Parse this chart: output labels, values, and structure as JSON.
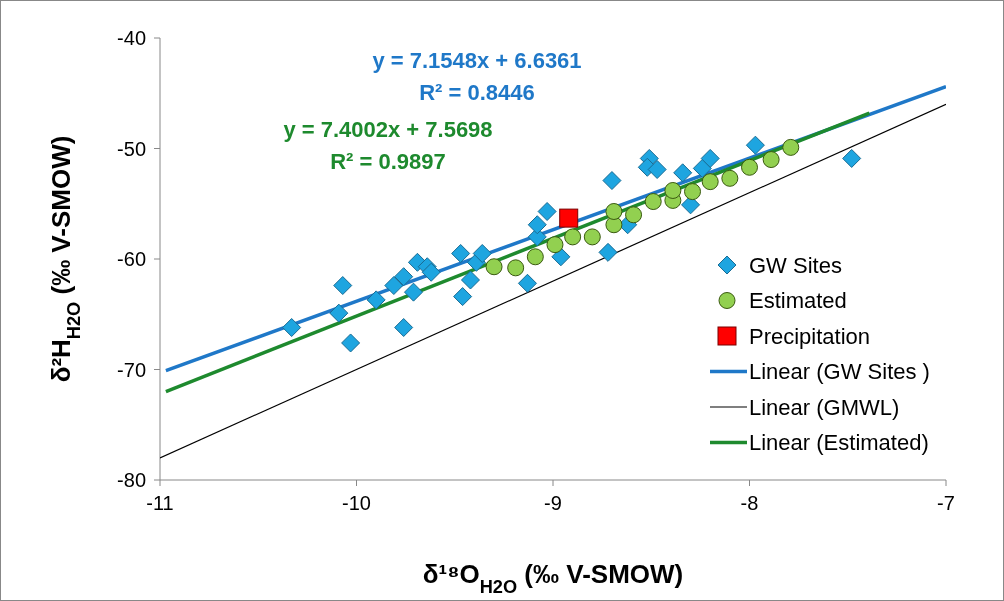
{
  "chart_data": {
    "type": "scatter",
    "xlabel": "δ¹⁸O$_{H2O}$ (‰ V-SMOW)",
    "ylabel": "δ²H$_{H2O}$ (‰ V-SMOW)",
    "xlim": [
      -11,
      -7
    ],
    "xticks": [
      -11,
      -10,
      -9,
      -8,
      -7
    ],
    "ylim": [
      -80,
      -40
    ],
    "yticks": [
      -80,
      -70,
      -60,
      -50,
      -40
    ],
    "grid": false,
    "legend": "right",
    "annotations": [
      "y = 7.1548x + 6.6361",
      "R² = 0.8446",
      "y = 7.4002x + 7.5698",
      "R² = 0.9897"
    ],
    "series": [
      {
        "name": "GW Sites",
        "marker": "diamond",
        "color": "#1ea5e0",
        "x": [
          -10.33,
          -10.07,
          -10.09,
          -10.03,
          -9.9,
          -9.81,
          -9.76,
          -9.76,
          -9.71,
          -9.69,
          -9.64,
          -9.62,
          -9.47,
          -9.46,
          -9.42,
          -9.39,
          -9.36,
          -9.13,
          -9.08,
          -9.08,
          -9.03,
          -8.96,
          -8.72,
          -8.7,
          -8.62,
          -8.51,
          -8.52,
          -8.47,
          -8.34,
          -8.24,
          -8.2,
          -8.3,
          -7.97,
          -7.48
        ],
        "values": [
          -66.2,
          -62.4,
          -64.9,
          -67.6,
          -63.7,
          -62.4,
          -61.6,
          -66.2,
          -63,
          -60.3,
          -60.7,
          -61.2,
          -59.5,
          -63.4,
          -61.9,
          -60.3,
          -59.5,
          -62.2,
          -58,
          -56.9,
          -55.7,
          -59.8,
          -59.4,
          -52.9,
          -56.9,
          -50.9,
          -51.7,
          -51.9,
          -52.2,
          -51.8,
          -50.9,
          -55.1,
          -49.7,
          -50.9
        ]
      },
      {
        "name": "Estimated",
        "marker": "circle",
        "color": "#92d050",
        "x": [
          -9.3,
          -9.19,
          -9.09,
          -8.99,
          -8.9,
          -8.8,
          -8.69,
          -8.69,
          -8.59,
          -8.49,
          -8.39,
          -8.39,
          -8.29,
          -8.2,
          -8.1,
          -8,
          -7.89,
          -7.79
        ],
        "values": [
          -60.7,
          -60.8,
          -59.8,
          -58.7,
          -58,
          -58,
          -56.9,
          -55.7,
          -56,
          -54.8,
          -54.7,
          -53.8,
          -53.9,
          -53,
          -52.7,
          -51.7,
          -51,
          -49.9
        ]
      },
      {
        "name": "Precipitation",
        "marker": "square",
        "color": "#ff0000",
        "x": [
          -8.92
        ],
        "values": [
          -56.3
        ]
      },
      {
        "name": "Linear (GW Sites )",
        "type": "line",
        "color": "#1f78c8",
        "x": [
          -10.97,
          -7
        ],
        "values": [
          -70.1,
          -44.4
        ]
      },
      {
        "name": "Linear (GMWL)",
        "type": "line",
        "color": "#000000",
        "x": [
          -11,
          -7
        ],
        "values": [
          -78,
          -46
        ]
      },
      {
        "name": "Linear (Estimated)",
        "type": "line",
        "color": "#1e8a2e",
        "x": [
          -10.97,
          -7.39
        ],
        "values": [
          -72,
          -46.8
        ]
      }
    ]
  }
}
